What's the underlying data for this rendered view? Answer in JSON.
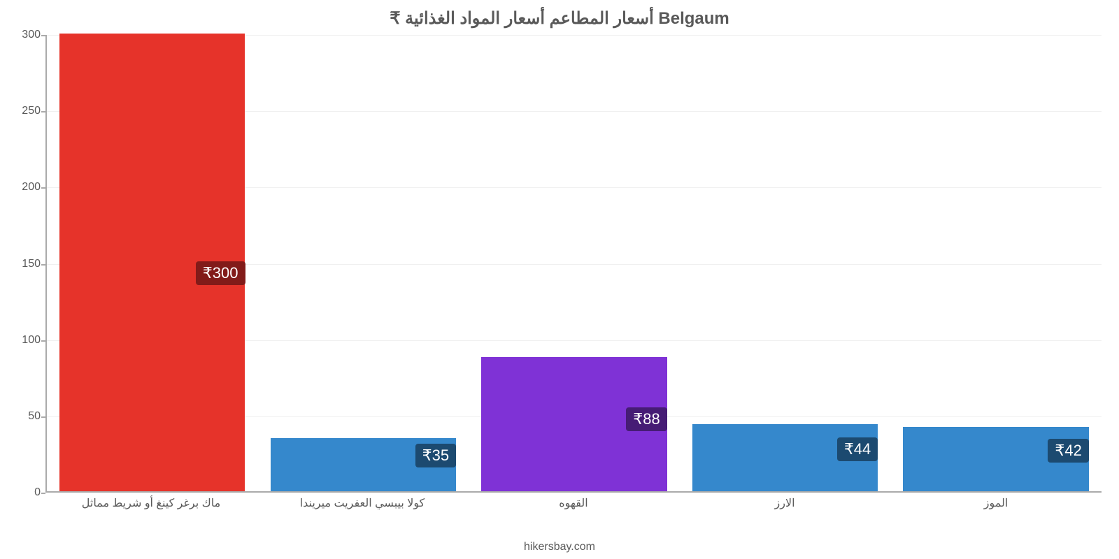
{
  "chart": {
    "title": "₹ أسعار المطاعم أسعار المواد الغذائية Belgaum",
    "title_color": "#595959",
    "title_fontsize": 24,
    "type": "bar",
    "background_color": "#ffffff",
    "axis_color": "#aaaaaa",
    "grid_color": "#f0f0f0",
    "label_color": "#595959",
    "ylim": [
      0,
      300
    ],
    "ytick_step": 50,
    "yticks": [
      0,
      50,
      100,
      150,
      200,
      250,
      300
    ],
    "bar_width": 0.88,
    "categories": [
      "ماك برغر كينغ أو شريط مماثل",
      "كولا بيبسي العفريت ميريندا",
      "القهوه",
      "الارز",
      "الموز"
    ],
    "values": [
      300,
      35,
      88,
      44,
      42
    ],
    "value_labels": [
      "₹300",
      "₹35",
      "₹88",
      "₹44",
      "₹42"
    ],
    "bar_colors": [
      "#e6332a",
      "#3588cc",
      "#7f32d6",
      "#3588cc",
      "#3588cc"
    ],
    "value_label_bg": [
      "#821b19",
      "#1c4a70",
      "#461c75",
      "#1c4a70",
      "#1c4a70"
    ],
    "value_label_color": "#ffffff",
    "value_label_fontsize": 22,
    "xlabel_fontsize": 16,
    "ytick_fontsize": 16,
    "footer": "hikersbay.com"
  }
}
